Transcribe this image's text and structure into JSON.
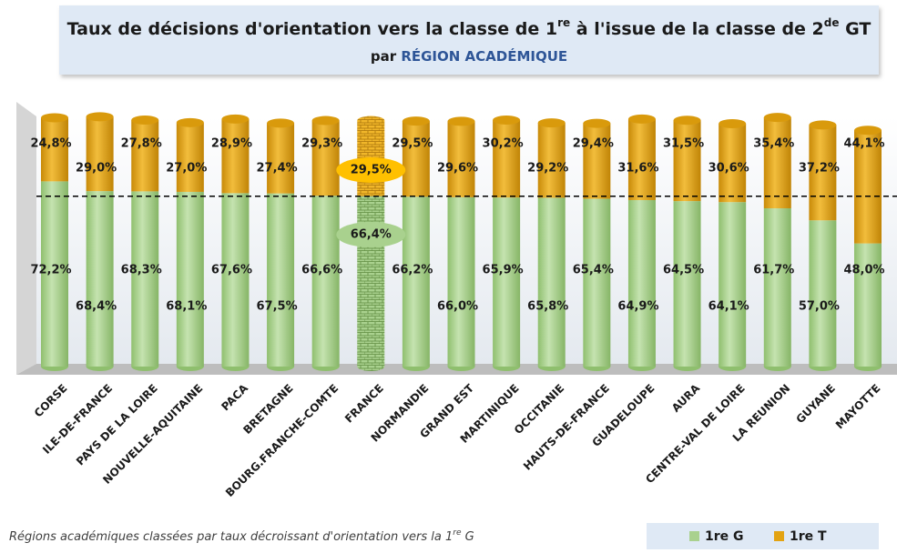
{
  "chart_data": {
    "type": "stacked-cylinder",
    "title": [
      "Taux de décisions d'orientation vers la classe de 1",
      "re",
      " à l'issue de la classe de 2",
      "de",
      " GT"
    ],
    "subtitle": [
      "par ",
      "RÉGION ACADÉMIQUE"
    ],
    "footnote": [
      "Régions académiques classées par taux décroissant d'orientation vers la 1",
      "re",
      " G"
    ],
    "categories": [
      "CORSE",
      "ILE-DE-FRANCE",
      "PAYS DE LA LOIRE",
      "NOUVELLE-AQUITAINE",
      "PACA",
      "BRETAGNE",
      "BOURG.FRANCHE-COMTE",
      "FRANCE",
      "NORMANDIE",
      "GRAND EST",
      "MARTINIQUE",
      "OCCITANIE",
      "HAUTS-DE-FRANCE",
      "GUADELOUPE",
      "AURA",
      "CENTRE-VAL DE LOIRE",
      "LA REUNION",
      "GUYANE",
      "MAYOTTE"
    ],
    "series": [
      {
        "name": "1re G",
        "color": "#a9d18e",
        "values": [
          72.2,
          68.4,
          68.3,
          68.1,
          67.6,
          67.5,
          66.6,
          66.4,
          66.2,
          66.0,
          65.9,
          65.8,
          65.4,
          64.9,
          64.5,
          64.1,
          61.7,
          57.0,
          48.0
        ],
        "value_labels": [
          "72,2%",
          "68,4%",
          "68,3%",
          "68,1%",
          "67,6%",
          "67,5%",
          "66,6%",
          "66,4%",
          "66,2%",
          "66,0%",
          "65,9%",
          "65,8%",
          "65,4%",
          "64,9%",
          "64,5%",
          "64,1%",
          "61,7%",
          "57,0%",
          "48,0%"
        ]
      },
      {
        "name": "1re T",
        "color": "#e3a312",
        "values": [
          24.8,
          29.0,
          27.8,
          27.0,
          28.9,
          27.4,
          29.3,
          29.5,
          29.5,
          29.6,
          30.2,
          29.2,
          29.4,
          31.6,
          31.5,
          30.6,
          35.4,
          37.2,
          44.1
        ],
        "value_labels": [
          "24,8%",
          "29,0%",
          "27,8%",
          "27,0%",
          "28,9%",
          "27,4%",
          "29,3%",
          "29,5%",
          "29,5%",
          "29,6%",
          "30,2%",
          "29,2%",
          "29,4%",
          "31,6%",
          "31,5%",
          "30,6%",
          "35,4%",
          "37,2%",
          "44,1%"
        ]
      }
    ]
  }
}
